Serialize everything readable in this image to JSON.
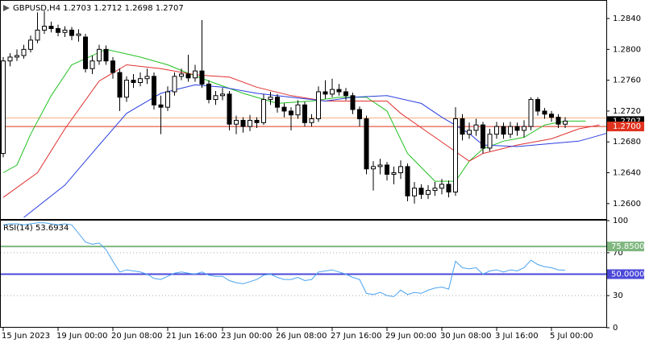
{
  "chart_data": [
    {
      "type": "candlestick",
      "title": "GBPUSD,H4  1.2703 1.2712 1.2698 1.2707",
      "categories": [
        "15 Jun 2023",
        null,
        null,
        null,
        null,
        null,
        null,
        null,
        "19 Jun 00:00",
        null,
        null,
        null,
        null,
        null,
        null,
        null,
        "20 Jun 08:00",
        null,
        null,
        null,
        null,
        null,
        null,
        null,
        "21 Jun 16:00",
        null,
        null,
        null,
        null,
        null,
        null,
        null,
        "23 Jun 00:00",
        null,
        null,
        null,
        null,
        null,
        null,
        null,
        "26 Jun 08:00",
        null,
        null,
        null,
        null,
        null,
        null,
        null,
        "27 Jun 16:00",
        null,
        null,
        null,
        null,
        null,
        null,
        null,
        "29 Jun 00:00",
        null,
        null,
        null,
        null,
        null,
        null,
        null,
        "30 Jun 08:00",
        null,
        null,
        null,
        null,
        null,
        null,
        null,
        "3 Jul 16:00",
        null,
        null,
        null,
        null,
        null,
        null,
        null,
        "5 Jul 00:00",
        null,
        null
      ],
      "open": [
        1.2665,
        1.2785,
        1.279,
        1.2792,
        1.28,
        1.2812,
        1.2825,
        1.283,
        1.2827,
        1.2822,
        1.2825,
        1.2818,
        1.2816,
        1.2775,
        1.2785,
        1.28,
        1.2785,
        1.277,
        1.2738,
        1.276,
        1.2757,
        1.2762,
        1.2765,
        1.2728,
        1.2725,
        1.2745,
        1.2765,
        1.2768,
        1.2763,
        1.2772,
        1.2755,
        1.2735,
        1.274,
        1.2742,
        1.2703,
        1.2708,
        1.27,
        1.2708,
        1.2705,
        1.2735,
        1.2738,
        1.2725,
        1.272,
        1.2715,
        1.2728,
        1.2705,
        1.271,
        1.2745,
        1.2742,
        1.2748,
        1.2745,
        1.274,
        1.2722,
        1.271,
        1.2645,
        1.2648,
        1.265,
        1.2638,
        1.264,
        1.2648,
        1.261,
        1.262,
        1.2612,
        1.2617,
        1.262,
        1.2625,
        1.2615,
        1.271,
        1.269,
        1.2695,
        1.2702,
        1.2672,
        1.269,
        1.27,
        1.269,
        1.27,
        1.2695,
        1.27,
        1.2735,
        1.272,
        1.2716,
        1.2712,
        1.2703
      ],
      "high": [
        1.279,
        1.2795,
        1.28,
        1.2806,
        1.2818,
        1.2848,
        1.285,
        1.2836,
        1.2832,
        1.283,
        1.2829,
        1.2826,
        1.282,
        1.2792,
        1.2806,
        1.2805,
        1.279,
        1.2775,
        1.2765,
        1.2768,
        1.277,
        1.2775,
        1.277,
        1.274,
        1.2752,
        1.277,
        1.2775,
        1.2793,
        1.278,
        1.2838,
        1.276,
        1.2746,
        1.275,
        1.2746,
        1.2714,
        1.2712,
        1.2715,
        1.2712,
        1.2742,
        1.2745,
        1.2742,
        1.273,
        1.2725,
        1.2734,
        1.2732,
        1.2716,
        1.2752,
        1.276,
        1.2762,
        1.2755,
        1.275,
        1.2744,
        1.2726,
        1.2714,
        1.2655,
        1.2658,
        1.2654,
        1.2648,
        1.2656,
        1.2652,
        1.2628,
        1.2625,
        1.2624,
        1.2628,
        1.2632,
        1.263,
        1.2725,
        1.2716,
        1.2705,
        1.271,
        1.2706,
        1.2697,
        1.2706,
        1.2705,
        1.2706,
        1.2705,
        1.2708,
        1.2738,
        1.2738,
        1.2724,
        1.272,
        1.2716,
        1.2712
      ],
      "low": [
        1.266,
        1.2778,
        1.2785,
        1.2788,
        1.2796,
        1.2808,
        1.282,
        1.2822,
        1.2817,
        1.2816,
        1.2812,
        1.281,
        1.277,
        1.2768,
        1.278,
        1.278,
        1.2762,
        1.272,
        1.2732,
        1.275,
        1.2752,
        1.2755,
        1.2722,
        1.269,
        1.272,
        1.274,
        1.276,
        1.2758,
        1.2758,
        1.275,
        1.273,
        1.2728,
        1.2734,
        1.2695,
        1.269,
        1.2692,
        1.2694,
        1.2698,
        1.2702,
        1.2728,
        1.2718,
        1.2712,
        1.2695,
        1.271,
        1.27,
        1.27,
        1.2706,
        1.2736,
        1.2738,
        1.274,
        1.2734,
        1.2716,
        1.27,
        1.2638,
        1.2617,
        1.2638,
        1.263,
        1.2625,
        1.2632,
        1.2603,
        1.26,
        1.2606,
        1.2606,
        1.261,
        1.2612,
        1.2608,
        1.261,
        1.2682,
        1.2684,
        1.2688,
        1.2665,
        1.2668,
        1.2684,
        1.2684,
        1.2685,
        1.2688,
        1.2686,
        1.2695,
        1.2714,
        1.271,
        1.2706,
        1.2698,
        1.2698
      ],
      "close": [
        1.2785,
        1.279,
        1.2792,
        1.28,
        1.2812,
        1.2825,
        1.283,
        1.2827,
        1.2822,
        1.2825,
        1.2818,
        1.282,
        1.2775,
        1.2785,
        1.28,
        1.2785,
        1.277,
        1.2738,
        1.276,
        1.2757,
        1.2762,
        1.2765,
        1.2728,
        1.2725,
        1.2745,
        1.2765,
        1.2768,
        1.2763,
        1.2772,
        1.2755,
        1.2735,
        1.274,
        1.2742,
        1.2703,
        1.2708,
        1.27,
        1.2708,
        1.2705,
        1.2735,
        1.2738,
        1.2725,
        1.272,
        1.2715,
        1.2728,
        1.2705,
        1.271,
        1.2745,
        1.2742,
        1.2748,
        1.2745,
        1.274,
        1.2722,
        1.271,
        1.2645,
        1.2648,
        1.265,
        1.2638,
        1.264,
        1.2648,
        1.261,
        1.262,
        1.2612,
        1.2617,
        1.262,
        1.2625,
        1.2615,
        1.271,
        1.269,
        1.2695,
        1.2702,
        1.2672,
        1.269,
        1.27,
        1.269,
        1.27,
        1.2695,
        1.27,
        1.2735,
        1.272,
        1.2716,
        1.2712,
        1.2703,
        1.2707
      ],
      "up_color": "#ffffff",
      "down_color": "#000000",
      "edge_color": "#000000",
      "series": [
        {
          "color": "#22c022",
          "x": [
            0,
            2,
            4,
            7,
            10,
            15,
            20,
            24,
            27,
            30,
            35,
            40,
            45,
            49,
            53,
            56,
            59,
            63,
            66,
            68,
            70,
            73,
            76,
            79,
            82,
            85
          ],
          "values": [
            1.264,
            1.265,
            1.269,
            1.274,
            1.278,
            1.28,
            1.279,
            1.278,
            1.2769,
            1.2759,
            1.2743,
            1.273,
            1.2733,
            1.2738,
            1.2738,
            1.272,
            1.2665,
            1.2629,
            1.2629,
            1.2655,
            1.2671,
            1.2681,
            1.2686,
            1.2702,
            1.2707,
            1.2707
          ]
        },
        {
          "color": "#e03030",
          "x": [
            0,
            5,
            9,
            14,
            18,
            23,
            28,
            33,
            37,
            42,
            47,
            51,
            56,
            58,
            63,
            68,
            70,
            75,
            80,
            84,
            87
          ],
          "values": [
            1.2608,
            1.264,
            1.2697,
            1.2759,
            1.278,
            1.2775,
            1.2767,
            1.2764,
            1.2751,
            1.274,
            1.2733,
            1.2733,
            1.2733,
            1.2717,
            1.2686,
            1.2655,
            1.2665,
            1.2676,
            1.2684,
            1.2697,
            1.2702
          ]
        },
        {
          "color": "#2a3ee0",
          "x": [
            3,
            9,
            14,
            18,
            23,
            28,
            32,
            37,
            42,
            47,
            51,
            56,
            61,
            64,
            68,
            70,
            75,
            80,
            84,
            88
          ],
          "values": [
            1.2582,
            1.2624,
            1.2676,
            1.2717,
            1.2743,
            1.2754,
            1.2751,
            1.2743,
            1.2738,
            1.2733,
            1.2738,
            1.274,
            1.273,
            1.2712,
            1.2691,
            1.2676,
            1.2674,
            1.2678,
            1.2681,
            1.2691
          ]
        }
      ],
      "hlines": [
        {
          "value": 1.2711,
          "color": "#f0b080"
        },
        {
          "value": 1.27,
          "color": "#e0331f"
        }
      ],
      "price_labels": [
        {
          "value": 1.2707,
          "label": "1.2707",
          "color": "#000000"
        },
        {
          "value": 1.27,
          "label": "1.2700",
          "color": "#e0331f"
        }
      ],
      "ylim": [
        1.258,
        1.2863
      ],
      "yticks": [
        {
          "value": 1.26,
          "label": "1.2600"
        },
        {
          "value": 1.264,
          "label": "1.2640"
        },
        {
          "value": 1.268,
          "label": "1.2680"
        },
        {
          "value": 1.272,
          "label": "1.2720"
        },
        {
          "value": 1.276,
          "label": "1.2760"
        },
        {
          "value": 1.28,
          "label": "1.2800"
        },
        {
          "value": 1.284,
          "label": "1.2840"
        }
      ]
    },
    {
      "type": "line",
      "title": "RSI(14) 53.6934",
      "color": "#4aa3ef",
      "values": [
        96,
        97,
        97,
        96,
        97,
        98,
        98,
        97,
        96,
        97,
        96,
        88,
        80,
        78,
        79,
        73,
        62,
        52,
        54,
        53,
        52,
        50,
        46,
        45,
        48,
        51,
        52,
        51,
        50,
        52,
        49,
        48,
        48,
        44,
        42,
        41,
        43,
        45,
        49,
        50,
        47,
        45,
        45,
        47,
        44,
        45,
        52,
        53,
        54,
        52,
        50,
        47,
        45,
        32,
        31,
        33,
        30,
        29,
        35,
        31,
        33,
        32,
        35,
        37,
        38,
        36,
        62,
        56,
        55,
        56,
        50,
        53,
        54,
        52,
        54,
        53,
        56,
        63,
        59,
        57,
        56,
        54,
        53.6934
      ],
      "levels": [
        {
          "value": 75.85,
          "label": "75.8500",
          "color": "#7fb77f"
        },
        {
          "value": 50,
          "label": "50.0000",
          "color": "#4b48d8"
        }
      ],
      "ylim": [
        0,
        100
      ],
      "yticks": [
        0,
        30,
        70,
        100
      ]
    }
  ]
}
